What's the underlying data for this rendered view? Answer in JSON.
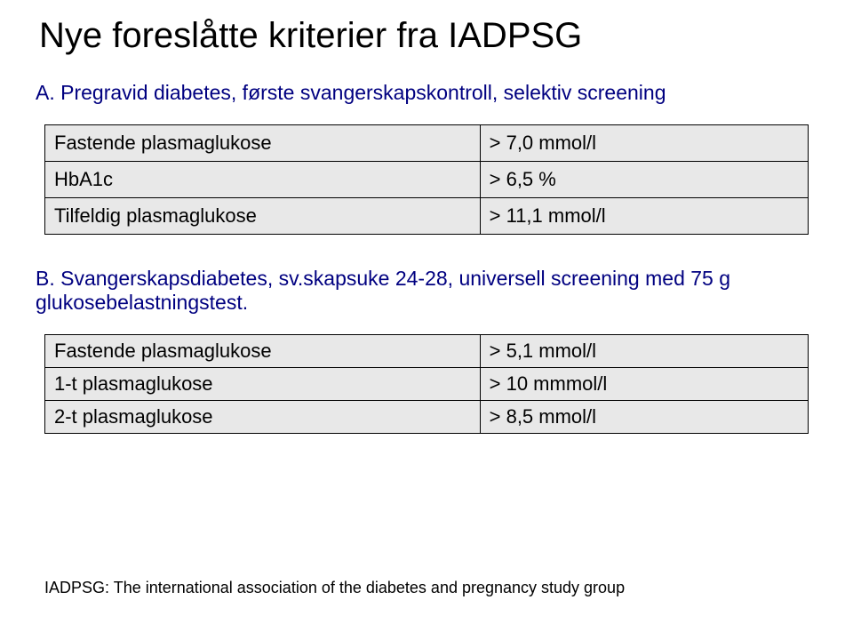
{
  "title": "Nye foreslåtte kriterier fra IADPSG",
  "sectionA": {
    "heading": "A. Pregravid diabetes, første svangerskapskontroll, selektiv screening",
    "rows": [
      {
        "label": "Fastende plasmaglukose",
        "value": "> 7,0 mmol/l"
      },
      {
        "label": "HbA1c",
        "value": "> 6,5 %"
      },
      {
        "label": "Tilfeldig plasmaglukose",
        "value": "> 11,1 mmol/l"
      }
    ]
  },
  "sectionB": {
    "heading": "B. Svangerskapsdiabetes, sv.skapsuke 24-28, universell screening med 75 g glukosebelastningstest.",
    "rows": [
      {
        "label": "Fastende plasmaglukose",
        "value": "> 5,1 mmol/l"
      },
      {
        "label": "1-t plasmaglukose",
        "value": "> 10 mmmol/l"
      },
      {
        "label": "2-t plasmaglukose",
        "value": "> 8,5 mmol/l"
      }
    ]
  },
  "footer": "IADPSG: The international association of the diabetes and pregnancy study group"
}
